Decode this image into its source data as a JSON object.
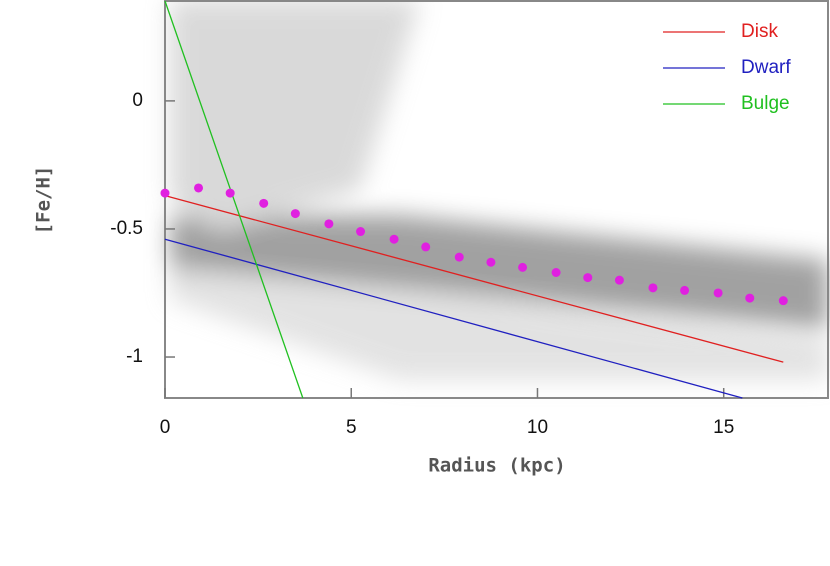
{
  "chart_data": {
    "type": "scatter",
    "xlabel": "Radius (kpc)",
    "ylabel": "[Fe/H]",
    "xlim": [
      0,
      17.8
    ],
    "ylim": [
      -1.16,
      0.39
    ],
    "xticks": [
      0,
      5,
      10,
      15
    ],
    "yticks": [
      0,
      -0.5,
      -1
    ],
    "legend": "upper right",
    "series": [
      {
        "name": "Disk",
        "type": "line",
        "color": "#e02020",
        "x": [
          0,
          16.6
        ],
        "values": [
          -0.37,
          -1.02
        ]
      },
      {
        "name": "Dwarf",
        "type": "line",
        "color": "#2020c0",
        "x": [
          0,
          15.5
        ],
        "values": [
          -0.54,
          -1.16
        ]
      },
      {
        "name": "Bulge",
        "type": "line",
        "color": "#20c020",
        "x": [
          0,
          3.7
        ],
        "values": [
          0.39,
          -1.16
        ]
      },
      {
        "type": "scatter",
        "color": "#e020e0",
        "x": [
          0,
          0.9,
          1.75,
          2.65,
          3.5,
          4.4,
          5.25,
          6.15,
          7,
          7.9,
          8.75,
          9.6,
          10.5,
          11.35,
          12.2,
          13.1,
          13.95,
          14.85,
          15.7,
          16.6
        ],
        "values": [
          -0.36,
          -0.34,
          -0.36,
          -0.4,
          -0.44,
          -0.48,
          -0.51,
          -0.54,
          -0.57,
          -0.61,
          -0.63,
          -0.65,
          -0.67,
          -0.69,
          -0.7,
          -0.73,
          -0.74,
          -0.75,
          -0.77,
          -0.78
        ]
      }
    ]
  }
}
